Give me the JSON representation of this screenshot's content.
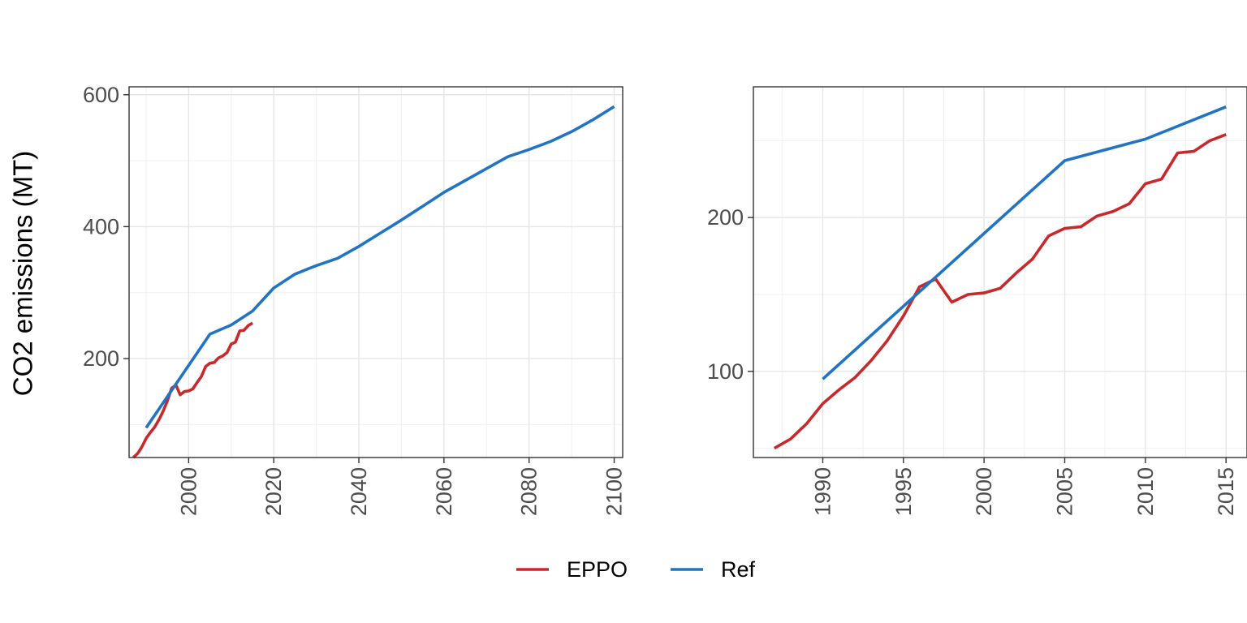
{
  "ylabel": "CO2 emissions (MT)",
  "legend": {
    "position": "bottom",
    "items": [
      {
        "name": "EPPO",
        "color": "#c7292c"
      },
      {
        "name": "Ref",
        "color": "#2174c4"
      }
    ]
  },
  "chart_data": [
    {
      "type": "line",
      "xlim": [
        1986,
        2102
      ],
      "ylim": [
        50,
        612
      ],
      "x_ticks": [
        2000,
        2020,
        2040,
        2060,
        2080,
        2100
      ],
      "y_ticks": [
        200,
        400,
        600
      ],
      "grid": true,
      "series": [
        {
          "name": "EPPO",
          "color": "#c7292c",
          "x": [
            1987,
            1988,
            1989,
            1990,
            1991,
            1992,
            1993,
            1994,
            1995,
            1996,
            1997,
            1998,
            1999,
            2000,
            2001,
            2002,
            2003,
            2004,
            2005,
            2006,
            2007,
            2008,
            2009,
            2010,
            2011,
            2012,
            2013,
            2014,
            2015
          ],
          "y": [
            50,
            56,
            66,
            79,
            88,
            96,
            107,
            120,
            136,
            155,
            160,
            145,
            150,
            151,
            154,
            164,
            173,
            188,
            193,
            194,
            201,
            204,
            209,
            222,
            225,
            242,
            243,
            250,
            254
          ]
        },
        {
          "name": "Ref",
          "color": "#2174c4",
          "x": [
            1990,
            2005,
            2010,
            2015,
            2020,
            2025,
            2030,
            2035,
            2040,
            2045,
            2050,
            2055,
            2060,
            2065,
            2070,
            2075,
            2080,
            2085,
            2090,
            2095,
            2100
          ],
          "y": [
            95,
            237,
            251,
            272,
            307,
            328,
            341,
            352,
            370,
            390,
            410,
            431,
            452,
            470,
            488,
            506,
            517,
            529,
            544,
            562,
            582
          ]
        }
      ]
    },
    {
      "type": "line",
      "xlim": [
        1985.7,
        2016.3
      ],
      "ylim": [
        44,
        285
      ],
      "x_ticks": [
        1990,
        1995,
        2000,
        2005,
        2010,
        2015
      ],
      "y_ticks": [
        100,
        200
      ],
      "grid": true,
      "series": [
        {
          "name": "EPPO",
          "color": "#c7292c",
          "x": [
            1987,
            1988,
            1989,
            1990,
            1991,
            1992,
            1993,
            1994,
            1995,
            1996,
            1997,
            1998,
            1999,
            2000,
            2001,
            2002,
            2003,
            2004,
            2005,
            2006,
            2007,
            2008,
            2009,
            2010,
            2011,
            2012,
            2013,
            2014,
            2015
          ],
          "y": [
            50,
            56,
            66,
            79,
            88,
            96,
            107,
            120,
            136,
            155,
            160,
            145,
            150,
            151,
            154,
            164,
            173,
            188,
            193,
            194,
            201,
            204,
            209,
            222,
            225,
            242,
            243,
            250,
            254
          ]
        },
        {
          "name": "Ref",
          "color": "#2174c4",
          "x": [
            1990,
            2005,
            2010,
            2015
          ],
          "y": [
            95,
            237,
            251,
            272
          ]
        }
      ]
    }
  ]
}
